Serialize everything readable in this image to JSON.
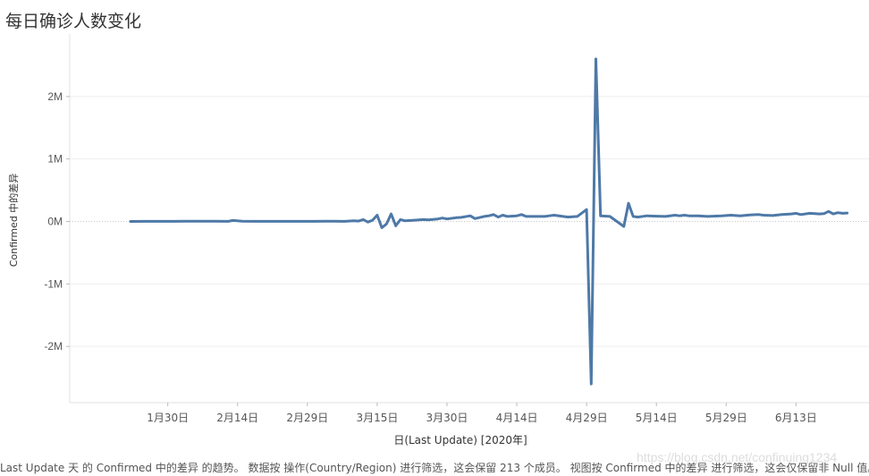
{
  "page": {
    "title": "每日确诊人数变化",
    "footer": "Last Update 天 的 Confirmed 中的差异 的趋势。 数据按 操作(Country/Region) 进行筛选，这会保留 213 个成员。 视图按 Confirmed 中的差异 进行筛选，这会仅保留非 Null 值。",
    "watermark": "https://blog.csdn.net/confinuing1234"
  },
  "colors": {
    "line": "#4e79a7",
    "grid": "#eeeeee",
    "zero_line": "#c8c8c8",
    "axis": "#e2e2e2",
    "text": "#555555"
  },
  "chart_data": {
    "type": "line",
    "title": "每日确诊人数变化",
    "xlabel": "日(Last Update) [2020年]",
    "ylabel": "Confirmed 中的差异",
    "x_ticks": [
      "1月30日",
      "2月14日",
      "2月29日",
      "3月15日",
      "3月30日",
      "4月14日",
      "4月29日",
      "5月14日",
      "5月29日",
      "6月13日"
    ],
    "y_ticks": [
      "2M",
      "1M",
      "0M",
      "-1M",
      "-2M"
    ],
    "ylim": [
      -2900000,
      3000000
    ],
    "xlim": [
      "2020-01-17",
      "2020-06-21"
    ],
    "grid": true,
    "series": [
      {
        "values": [
          {
            "x": "2020-01-22",
            "y": 0
          },
          {
            "x": "2020-01-25",
            "y": 1000
          },
          {
            "x": "2020-01-28",
            "y": 1500
          },
          {
            "x": "2020-01-31",
            "y": 2000
          },
          {
            "x": "2020-02-03",
            "y": 3000
          },
          {
            "x": "2020-02-06",
            "y": 3500
          },
          {
            "x": "2020-02-09",
            "y": 3000
          },
          {
            "x": "2020-02-12",
            "y": 2000
          },
          {
            "x": "2020-02-13",
            "y": 15000
          },
          {
            "x": "2020-02-15",
            "y": 3000
          },
          {
            "x": "2020-02-18",
            "y": 2000
          },
          {
            "x": "2020-02-21",
            "y": 1000
          },
          {
            "x": "2020-02-24",
            "y": 1000
          },
          {
            "x": "2020-02-27",
            "y": 1000
          },
          {
            "x": "2020-03-01",
            "y": 2000
          },
          {
            "x": "2020-03-04",
            "y": 2500
          },
          {
            "x": "2020-03-06",
            "y": 3000
          },
          {
            "x": "2020-03-08",
            "y": 2000
          },
          {
            "x": "2020-03-10",
            "y": 10000
          },
          {
            "x": "2020-03-11",
            "y": 5000
          },
          {
            "x": "2020-03-12",
            "y": 30000
          },
          {
            "x": "2020-03-13",
            "y": -10000
          },
          {
            "x": "2020-03-14",
            "y": 20000
          },
          {
            "x": "2020-03-15",
            "y": 100000
          },
          {
            "x": "2020-03-16",
            "y": -100000
          },
          {
            "x": "2020-03-17",
            "y": -40000
          },
          {
            "x": "2020-03-18",
            "y": 120000
          },
          {
            "x": "2020-03-19",
            "y": -70000
          },
          {
            "x": "2020-03-20",
            "y": 30000
          },
          {
            "x": "2020-03-21",
            "y": 10000
          },
          {
            "x": "2020-03-23",
            "y": 20000
          },
          {
            "x": "2020-03-25",
            "y": 30000
          },
          {
            "x": "2020-03-26",
            "y": 25000
          },
          {
            "x": "2020-03-28",
            "y": 40000
          },
          {
            "x": "2020-03-29",
            "y": 55000
          },
          {
            "x": "2020-03-30",
            "y": 40000
          },
          {
            "x": "2020-04-01",
            "y": 60000
          },
          {
            "x": "2020-04-02",
            "y": 65000
          },
          {
            "x": "2020-04-04",
            "y": 90000
          },
          {
            "x": "2020-04-05",
            "y": 45000
          },
          {
            "x": "2020-04-07",
            "y": 80000
          },
          {
            "x": "2020-04-08",
            "y": 90000
          },
          {
            "x": "2020-04-09",
            "y": 110000
          },
          {
            "x": "2020-04-10",
            "y": 70000
          },
          {
            "x": "2020-04-11",
            "y": 100000
          },
          {
            "x": "2020-04-12",
            "y": 80000
          },
          {
            "x": "2020-04-14",
            "y": 90000
          },
          {
            "x": "2020-04-15",
            "y": 110000
          },
          {
            "x": "2020-04-16",
            "y": 80000
          },
          {
            "x": "2020-04-18",
            "y": 80000
          },
          {
            "x": "2020-04-20",
            "y": 80000
          },
          {
            "x": "2020-04-21",
            "y": 90000
          },
          {
            "x": "2020-04-22",
            "y": 100000
          },
          {
            "x": "2020-04-25",
            "y": 70000
          },
          {
            "x": "2020-04-27",
            "y": 80000
          },
          {
            "x": "2020-04-29",
            "y": 190000
          },
          {
            "x": "2020-04-30",
            "y": -2600000
          },
          {
            "x": "2020-05-01",
            "y": 2600000
          },
          {
            "x": "2020-05-02",
            "y": 90000
          },
          {
            "x": "2020-05-04",
            "y": 80000
          },
          {
            "x": "2020-05-07",
            "y": -80000
          },
          {
            "x": "2020-05-08",
            "y": 290000
          },
          {
            "x": "2020-05-09",
            "y": 80000
          },
          {
            "x": "2020-05-10",
            "y": 70000
          },
          {
            "x": "2020-05-12",
            "y": 90000
          },
          {
            "x": "2020-05-14",
            "y": 85000
          },
          {
            "x": "2020-05-16",
            "y": 80000
          },
          {
            "x": "2020-05-18",
            "y": 100000
          },
          {
            "x": "2020-05-19",
            "y": 90000
          },
          {
            "x": "2020-05-20",
            "y": 100000
          },
          {
            "x": "2020-05-21",
            "y": 90000
          },
          {
            "x": "2020-05-23",
            "y": 90000
          },
          {
            "x": "2020-05-25",
            "y": 80000
          },
          {
            "x": "2020-05-28",
            "y": 90000
          },
          {
            "x": "2020-05-30",
            "y": 100000
          },
          {
            "x": "2020-06-01",
            "y": 90000
          },
          {
            "x": "2020-06-03",
            "y": 105000
          },
          {
            "x": "2020-06-05",
            "y": 110000
          },
          {
            "x": "2020-06-06",
            "y": 100000
          },
          {
            "x": "2020-06-08",
            "y": 95000
          },
          {
            "x": "2020-06-10",
            "y": 110000
          },
          {
            "x": "2020-06-12",
            "y": 120000
          },
          {
            "x": "2020-06-13",
            "y": 130000
          },
          {
            "x": "2020-06-14",
            "y": 110000
          },
          {
            "x": "2020-06-16",
            "y": 130000
          },
          {
            "x": "2020-06-18",
            "y": 120000
          },
          {
            "x": "2020-06-19",
            "y": 125000
          },
          {
            "x": "2020-06-20",
            "y": 160000
          },
          {
            "x": "2020-06-21",
            "y": 120000
          },
          {
            "x": "2020-06-22",
            "y": 140000
          },
          {
            "x": "2020-06-23",
            "y": 130000
          },
          {
            "x": "2020-06-24",
            "y": 135000
          }
        ]
      }
    ]
  }
}
